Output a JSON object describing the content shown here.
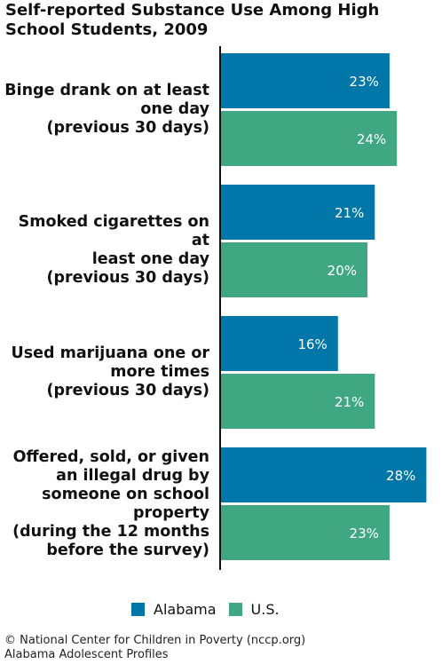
{
  "chart_data": {
    "type": "bar",
    "orientation": "horizontal",
    "title": "Self-reported Substance Use Among High School Students, 2009",
    "categories": [
      [
        "Binge drank on at least",
        "one day",
        "(previous 30 days)"
      ],
      [
        "Smoked cigarettes on at",
        "least one day",
        "(previous 30 days)"
      ],
      [
        "Used marijuana one or",
        "more times",
        "(previous 30 days)"
      ],
      [
        "Offered, sold, or given",
        "an illegal drug by",
        "someone on school",
        "property",
        "(during the 12 months",
        "before the survey)"
      ]
    ],
    "series": [
      {
        "name": "Alabama",
        "color": "#0077a8",
        "values": [
          23,
          21,
          16,
          28
        ],
        "labels": [
          "23%",
          "21%",
          "16%",
          "28%"
        ]
      },
      {
        "name": "U.S.",
        "color": "#3fa882",
        "values": [
          24,
          20,
          21,
          23
        ],
        "labels": [
          "24%",
          "20%",
          "21%",
          "23%"
        ]
      }
    ],
    "value_unit": "%",
    "legend_position": "bottom",
    "grid": false
  },
  "footer": {
    "line1": "© National Center for Children in Poverty (nccp.org)",
    "line2": "Alabama Adolescent Profiles"
  }
}
